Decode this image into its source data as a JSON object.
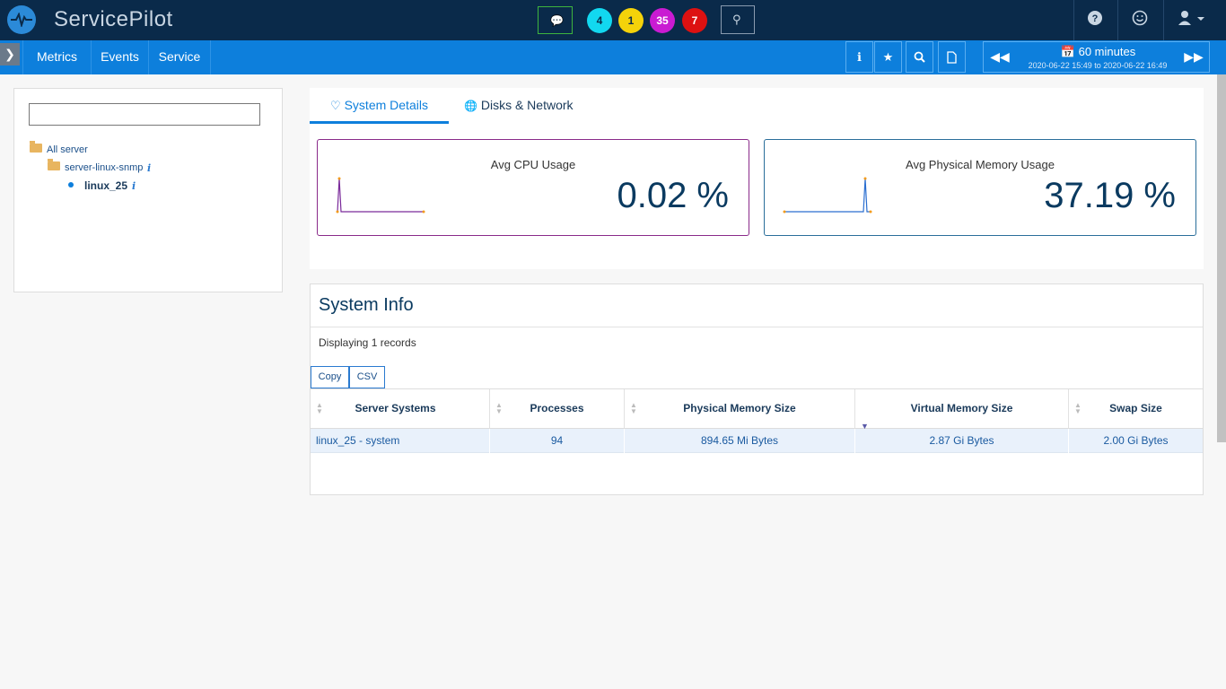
{
  "app": {
    "name": "ServicePilot"
  },
  "topbar": {
    "badges": [
      "4",
      "1",
      "35",
      "7"
    ],
    "icons": {
      "chat": "chat-icon",
      "search": "search-icon",
      "help": "help-icon",
      "smile": "smile-icon",
      "user": "user-icon"
    }
  },
  "nav": {
    "items": [
      "Metrics",
      "Events",
      "Service"
    ]
  },
  "time": {
    "title": "60 minutes",
    "from": "2020-06-22 15:49",
    "to_word": "to",
    "to": "2020-06-22 16:49"
  },
  "tree": {
    "search_placeholder": "",
    "root": "All server",
    "group": "server-linux-snmp",
    "node": "linux_25",
    "info_glyph": "i"
  },
  "tabs": [
    "System Details",
    "Disks & Network"
  ],
  "cards": {
    "cpu": {
      "title": "Avg CPU Usage",
      "value": "0.02 %"
    },
    "mem": {
      "title": "Avg Physical Memory Usage",
      "value": "37.19 %"
    }
  },
  "system_info": {
    "title": "System Info",
    "records": "Displaying 1 records",
    "buttons": {
      "copy": "Copy",
      "csv": "CSV"
    },
    "columns": [
      "Server Systems",
      "Processes",
      "Physical Memory Size",
      "Virtual Memory Size",
      "Swap Size"
    ],
    "rows": [
      [
        "linux_25 - system",
        "94",
        "894.65 Mi Bytes",
        "2.87 Gi Bytes",
        "2.00 Gi Bytes"
      ]
    ]
  },
  "colors": {
    "topbar": "#0a2a4a",
    "navbar": "#0d7fdc",
    "cpu_border": "#8a2a8a",
    "mem_border": "#2a6e9a"
  }
}
